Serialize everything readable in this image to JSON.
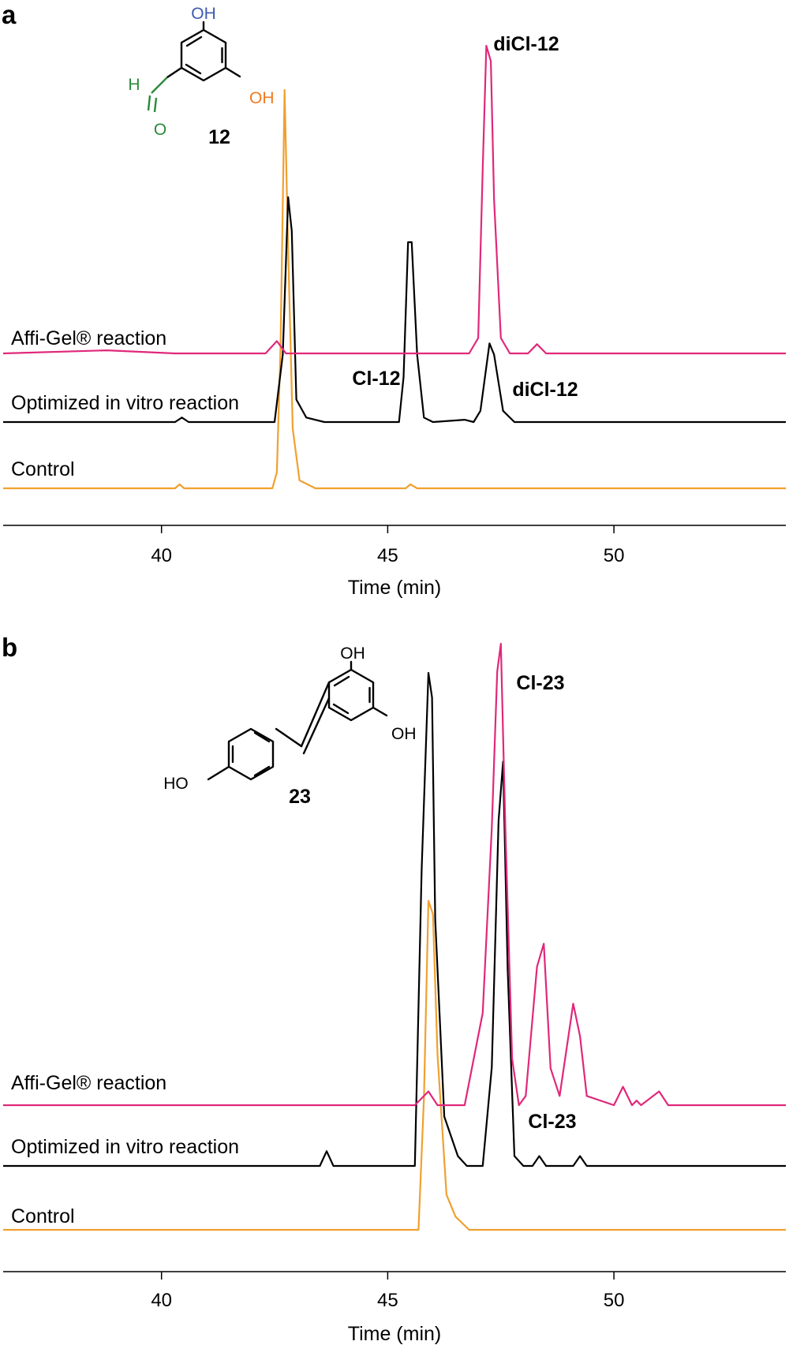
{
  "colors": {
    "affi": "#e0287a",
    "optimized": "#000000",
    "control": "#f0a030",
    "oh_blue": "#3d5ab0",
    "oh_orange": "#f07a20",
    "cho_green": "#2a8a3a"
  },
  "chart_data": [
    {
      "panel": "a",
      "type": "line",
      "xlabel": "Time (min)",
      "xlim": [
        36.5,
        53.8
      ],
      "xticks": [
        40,
        45,
        50
      ],
      "traces": [
        {
          "label": "Affi-Gel® reaction",
          "color": "#e0287a",
          "points": [
            [
              36.5,
              0
            ],
            [
              38.8,
              0.01
            ],
            [
              40.3,
              0
            ],
            [
              42.3,
              0
            ],
            [
              42.55,
              0.04
            ],
            [
              42.75,
              0
            ],
            [
              46.8,
              0
            ],
            [
              47.0,
              0.05
            ],
            [
              47.1,
              0.6
            ],
            [
              47.18,
              1.0
            ],
            [
              47.28,
              0.95
            ],
            [
              47.35,
              0.5
            ],
            [
              47.5,
              0.05
            ],
            [
              47.7,
              0
            ],
            [
              48.1,
              0
            ],
            [
              48.3,
              0.03
            ],
            [
              48.5,
              0
            ],
            [
              53.8,
              0
            ]
          ],
          "peak_label": {
            "text": "diCl-12",
            "x": 48.6,
            "y": 1.0
          }
        },
        {
          "label": "Optimized in vitro reaction",
          "color": "#000000",
          "points": [
            [
              36.5,
              0
            ],
            [
              40.3,
              0
            ],
            [
              40.45,
              0.02
            ],
            [
              40.6,
              0
            ],
            [
              42.5,
              0
            ],
            [
              42.68,
              0.3
            ],
            [
              42.8,
              1.0
            ],
            [
              42.88,
              0.85
            ],
            [
              42.98,
              0.1
            ],
            [
              43.2,
              0.02
            ],
            [
              43.6,
              0
            ],
            [
              45.25,
              0
            ],
            [
              45.35,
              0.2
            ],
            [
              45.45,
              0.8
            ],
            [
              45.53,
              0.8
            ],
            [
              45.65,
              0.3
            ],
            [
              45.8,
              0.02
            ],
            [
              46.0,
              0
            ],
            [
              46.7,
              0.01
            ],
            [
              46.9,
              0
            ],
            [
              47.05,
              0.05
            ],
            [
              47.25,
              0.35
            ],
            [
              47.35,
              0.3
            ],
            [
              47.55,
              0.05
            ],
            [
              47.8,
              0
            ],
            [
              53.8,
              0
            ]
          ],
          "peak_labels": [
            {
              "text": "Cl-12",
              "x": 44.75,
              "y": 0.9
            },
            {
              "text": "diCl-12",
              "x": 48.6,
              "y": 0.6
            }
          ]
        },
        {
          "label": "Control",
          "color": "#f0a030",
          "points": [
            [
              36.5,
              0
            ],
            [
              40.3,
              0
            ],
            [
              40.4,
              0.01
            ],
            [
              40.5,
              0
            ],
            [
              42.45,
              0
            ],
            [
              42.55,
              0.04
            ],
            [
              42.63,
              0.35
            ],
            [
              42.72,
              1.0
            ],
            [
              42.8,
              0.6
            ],
            [
              42.9,
              0.15
            ],
            [
              43.05,
              0.02
            ],
            [
              43.4,
              0
            ],
            [
              45.4,
              0
            ],
            [
              45.5,
              0.01
            ],
            [
              45.65,
              0
            ],
            [
              53.8,
              0
            ]
          ]
        }
      ],
      "structure": {
        "label": "12",
        "oh_top": "OH",
        "oh_right": "OH",
        "ald_h": "H",
        "ald_o": "O"
      }
    },
    {
      "panel": "b",
      "type": "line",
      "xlabel": "Time (min)",
      "xlim": [
        36.5,
        53.8
      ],
      "xticks": [
        40,
        45,
        50
      ],
      "traces": [
        {
          "label": "Affi-Gel® reaction",
          "color": "#e0287a",
          "points": [
            [
              36.5,
              0
            ],
            [
              45.6,
              0
            ],
            [
              45.9,
              0.03
            ],
            [
              46.1,
              0
            ],
            [
              46.7,
              0
            ],
            [
              47.1,
              0.2
            ],
            [
              47.3,
              0.6
            ],
            [
              47.42,
              0.94
            ],
            [
              47.5,
              1.0
            ],
            [
              47.6,
              0.6
            ],
            [
              47.75,
              0.1
            ],
            [
              47.9,
              0
            ],
            [
              48.05,
              0.02
            ],
            [
              48.3,
              0.3
            ],
            [
              48.45,
              0.35
            ],
            [
              48.6,
              0.08
            ],
            [
              48.8,
              0.02
            ],
            [
              48.95,
              0.12
            ],
            [
              49.1,
              0.22
            ],
            [
              49.25,
              0.15
            ],
            [
              49.4,
              0.02
            ],
            [
              50.0,
              0
            ],
            [
              50.2,
              0.04
            ],
            [
              50.4,
              0
            ],
            [
              50.5,
              0.01
            ],
            [
              50.6,
              0
            ],
            [
              51.0,
              0.03
            ],
            [
              51.2,
              0
            ],
            [
              51.4,
              0
            ],
            [
              53.5,
              0
            ],
            [
              53.8,
              0
            ]
          ],
          "peak_label": {
            "text": "Cl-23",
            "x": 47.7,
            "y": 1.0
          }
        },
        {
          "label": "Optimized in vitro reaction",
          "color": "#000000",
          "points": [
            [
              36.5,
              0
            ],
            [
              43.5,
              0
            ],
            [
              43.65,
              0.03
            ],
            [
              43.8,
              0
            ],
            [
              45.6,
              0
            ],
            [
              45.75,
              0.6
            ],
            [
              45.9,
              1.0
            ],
            [
              45.98,
              0.95
            ],
            [
              46.05,
              0.5
            ],
            [
              46.25,
              0.1
            ],
            [
              46.4,
              0.06
            ],
            [
              46.55,
              0.02
            ],
            [
              46.75,
              0
            ],
            [
              47.1,
              0
            ],
            [
              47.3,
              0.2
            ],
            [
              47.45,
              0.7
            ],
            [
              47.55,
              0.82
            ],
            [
              47.65,
              0.4
            ],
            [
              47.8,
              0.02
            ],
            [
              48.0,
              0
            ],
            [
              48.2,
              0
            ],
            [
              48.35,
              0.02
            ],
            [
              48.5,
              0
            ],
            [
              49.1,
              0
            ],
            [
              49.25,
              0.02
            ],
            [
              49.4,
              0
            ],
            [
              53.8,
              0
            ]
          ],
          "peak_label": {
            "text": "Cl-23",
            "x": 47.9,
            "y": 0.1
          }
        },
        {
          "label": "Control",
          "color": "#f0a030",
          "points": [
            [
              36.5,
              0
            ],
            [
              45.68,
              0
            ],
            [
              45.8,
              0.3
            ],
            [
              45.9,
              0.75
            ],
            [
              46.0,
              0.72
            ],
            [
              46.1,
              0.4
            ],
            [
              46.3,
              0.08
            ],
            [
              46.5,
              0.03
            ],
            [
              46.8,
              0
            ],
            [
              53.8,
              0
            ]
          ]
        }
      ],
      "structure": {
        "label": "23",
        "oh_top": "OH",
        "oh_right": "OH",
        "oh_left": "HO"
      }
    }
  ]
}
